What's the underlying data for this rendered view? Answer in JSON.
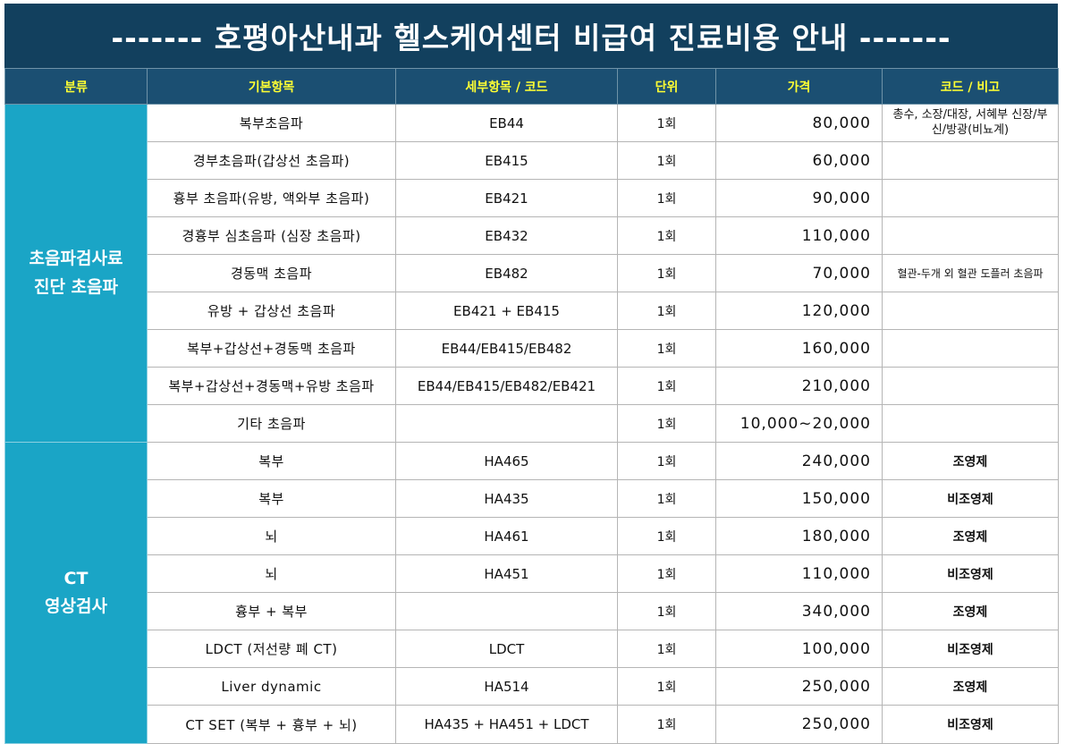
{
  "title": "------- 호평아산내과 헬스케어센터 비급여 진료비용 안내 -------",
  "headers": {
    "category": "분류",
    "item": "기본항목",
    "detail": "세부항목 / 코드",
    "unit": "단위",
    "price": "가격",
    "note": "코드 / 비고"
  },
  "groups": [
    {
      "category_lines": [
        "초음파검사료",
        "진단 초음파"
      ],
      "rows": [
        {
          "item": "복부초음파",
          "code": "EB44",
          "unit": "1회",
          "price": "80,000",
          "note": "총수, 소장/대장, 서혜부 신장/부신/방광(비뇨계)"
        },
        {
          "item": "경부초음파(갑상선 초음파)",
          "code": "EB415",
          "unit": "1회",
          "price": "60,000",
          "note": ""
        },
        {
          "item": "흉부 초음파(유방, 액와부 초음파)",
          "code": "EB421",
          "unit": "1회",
          "price": "90,000",
          "note": ""
        },
        {
          "item": "경흉부 심초음파 (심장 초음파)",
          "code": "EB432",
          "unit": "1회",
          "price": "110,000",
          "note": ""
        },
        {
          "item": "경동맥 초음파",
          "code": "EB482",
          "unit": "1회",
          "price": "70,000",
          "note": "혈관-두개 외 혈관 도플러 초음파"
        },
        {
          "item": "유방 + 갑상선 초음파",
          "code": "EB421 + EB415",
          "unit": "1회",
          "price": "120,000",
          "note": ""
        },
        {
          "item": "복부+갑상선+경동맥 초음파",
          "code": "EB44/EB415/EB482",
          "unit": "1회",
          "price": "160,000",
          "note": ""
        },
        {
          "item": "복부+갑상선+경동맥+유방 초음파",
          "code": "EB44/EB415/EB482/EB421",
          "unit": "1회",
          "price": "210,000",
          "note": ""
        },
        {
          "item": "기타 초음파",
          "code": "",
          "unit": "1회",
          "price": "10,000~20,000",
          "note": ""
        }
      ]
    },
    {
      "category_lines": [
        "CT",
        "영상검사"
      ],
      "rows": [
        {
          "item": "복부",
          "code": "HA465",
          "unit": "1회",
          "price": "240,000",
          "note": "조영제"
        },
        {
          "item": "복부",
          "code": "HA435",
          "unit": "1회",
          "price": "150,000",
          "note": "비조영제"
        },
        {
          "item": "뇌",
          "code": "HA461",
          "unit": "1회",
          "price": "180,000",
          "note": "조영제"
        },
        {
          "item": "뇌",
          "code": "HA451",
          "unit": "1회",
          "price": "110,000",
          "note": "비조영제"
        },
        {
          "item": "흉부 + 복부",
          "code": "",
          "unit": "1회",
          "price": "340,000",
          "note": "조영제"
        },
        {
          "item": "LDCT (저선량 폐 CT)",
          "code": "LDCT",
          "unit": "1회",
          "price": "100,000",
          "note": "비조영제"
        },
        {
          "item": "Liver dynamic",
          "code": "HA514",
          "unit": "1회",
          "price": "250,000",
          "note": "조영제"
        },
        {
          "item": "CT SET (복부 + 흉부 + 뇌)",
          "code": "HA435 + HA451 + LDCT",
          "unit": "1회",
          "price": "250,000",
          "note": "비조영제"
        }
      ]
    }
  ]
}
